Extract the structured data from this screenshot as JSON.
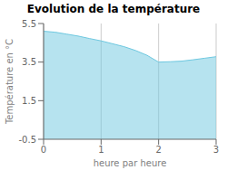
{
  "chart_data": {
    "type": "area",
    "title": "Evolution de la température",
    "x_label": "heure par heure",
    "y_label": "Température en °C",
    "x": [
      0,
      0.2,
      0.4,
      0.6,
      0.8,
      1.0,
      1.2,
      1.4,
      1.6,
      1.8,
      2.0,
      2.2,
      2.4,
      2.6,
      2.8,
      3.0
    ],
    "values": [
      5.1,
      5.05,
      4.95,
      4.85,
      4.72,
      4.6,
      4.45,
      4.3,
      4.1,
      3.85,
      3.5,
      3.52,
      3.55,
      3.62,
      3.7,
      3.78
    ],
    "color": "#6ec8e0",
    "xlim": [
      0,
      3
    ],
    "xticks": [
      0,
      1,
      2,
      3
    ],
    "ylim": [
      -0.5,
      5.5
    ],
    "yticks": [
      -0.5,
      1.5,
      3.5,
      5.5
    ],
    "grid": "x"
  }
}
